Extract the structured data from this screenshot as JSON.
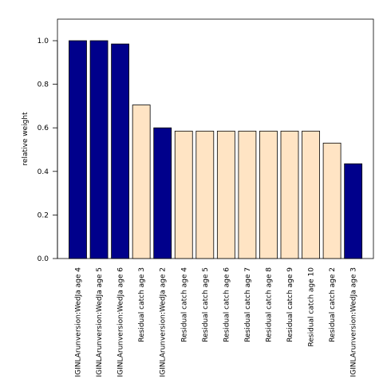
{
  "chart_data": {
    "type": "bar",
    "ylabel": "relative weight",
    "xlabel": "",
    "ylim": [
      0,
      1.1
    ],
    "yticks": [
      "0.0",
      "0.2",
      "0.4",
      "0.6",
      "0.8",
      "1.0"
    ],
    "categories": [
      "IGINLArunversion:WedJa age 4",
      "IGINLArunversion:WedJa age 5",
      "IGINLArunversion:WedJa age 6",
      "Residual catch age 3",
      "IGINLArunversion:WedJa age 2",
      "Residual catch age 4",
      "Residual catch age 5",
      "Residual catch age 6",
      "Residual catch age 7",
      "Residual catch age 8",
      "Residual catch age 9",
      "Residual catch age 10",
      "Residual catch age 2",
      "IGINLArunversion:WedJa age 3"
    ],
    "values": [
      1.0,
      1.0,
      0.985,
      0.705,
      0.6,
      0.585,
      0.585,
      0.585,
      0.585,
      0.585,
      0.585,
      0.585,
      0.53,
      0.435
    ],
    "bar_groups": [
      "survey",
      "survey",
      "survey",
      "catch",
      "survey",
      "catch",
      "catch",
      "catch",
      "catch",
      "catch",
      "catch",
      "catch",
      "catch",
      "survey"
    ],
    "colors": {
      "survey": "#00008B",
      "catch": "#FFE4C4",
      "stroke": "#000000"
    }
  }
}
